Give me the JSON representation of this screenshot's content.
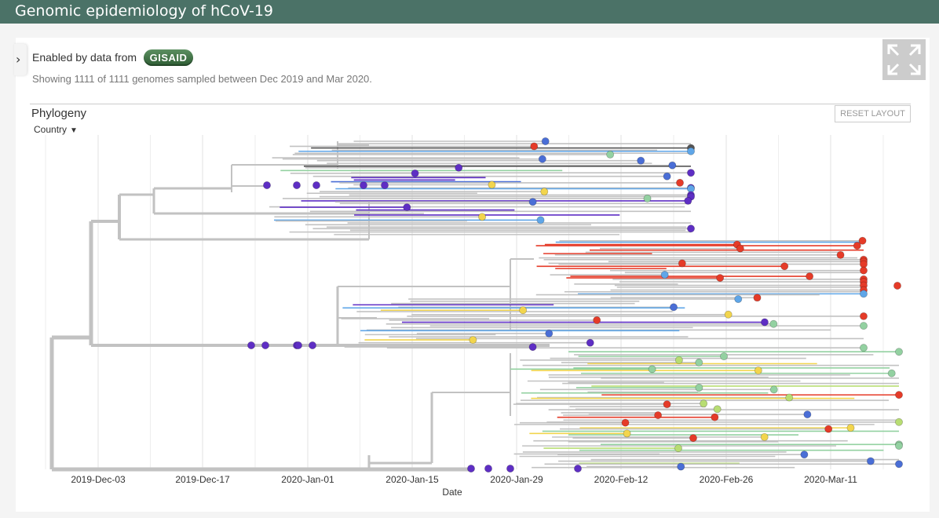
{
  "header": {
    "title": "Genomic epidemiology of hCoV-19"
  },
  "info": {
    "enabled_by": "Enabled by data from",
    "gisaid_logo": "GISAID",
    "showing": "Showing 1111 of 1111 genomes sampled between Dec 2019 and Mar 2020."
  },
  "panel": {
    "title": "Phylogeny",
    "reset_label": "RESET LAYOUT",
    "color_by": "Country"
  },
  "icons": {
    "sidebar_toggle": "chevron-right-icon",
    "fullscreen": "expand-icon",
    "dropdown": "chevron-down-icon"
  },
  "colors": {
    "header_bg": "#4b7267",
    "branch": "#c2c2c2",
    "tip_colors": [
      "#5e2ec4",
      "#4a6ed6",
      "#5fa6e8",
      "#93d1a1",
      "#b8dd73",
      "#f2d54d",
      "#f39a3b",
      "#e53b28",
      "#555555"
    ]
  },
  "chart_data": {
    "type": "scatter",
    "xlabel": "Date",
    "x_ticks": [
      "2019-Dec-03",
      "2019-Dec-17",
      "2020-Jan-01",
      "2020-Jan-15",
      "2020-Jan-29",
      "2020-Feb-12",
      "2020-Feb-26",
      "2020-Mar-11"
    ],
    "xlim": [
      "2019-Nov-27",
      "2020-Mar-17"
    ],
    "grid": true,
    "tip_count": 1111
  }
}
